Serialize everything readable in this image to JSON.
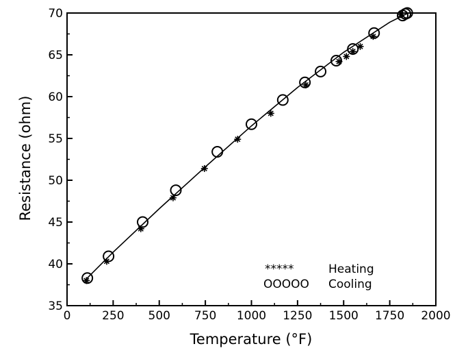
{
  "chart_data": {
    "type": "scatter",
    "xlabel": "Temperature  (°F)",
    "ylabel": "Resistance  (ohm)",
    "xlim": [
      0,
      2000
    ],
    "ylim": [
      35,
      70
    ],
    "x_ticks": [
      "0",
      "250",
      "500",
      "750",
      "1000",
      "1250",
      "1500",
      "1750",
      "2000"
    ],
    "y_ticks": [
      "35",
      "40",
      "45",
      "50",
      "55",
      "60",
      "65",
      "70"
    ],
    "grid": false,
    "legend_position": "bottom-right",
    "series": [
      {
        "name": "Heating",
        "marker_label": "*****",
        "marker": "asterisk",
        "x": [
          105,
          215,
          400,
          575,
          745,
          925,
          1105,
          1295,
          1475,
          1515,
          1550,
          1590,
          1660,
          1810
        ],
        "y": [
          38.0,
          40.3,
          44.2,
          47.9,
          51.4,
          54.9,
          58.0,
          61.4,
          64.2,
          64.8,
          65.4,
          66.0,
          67.2,
          69.8
        ]
      },
      {
        "name": "Cooling",
        "marker_label": "OOOOO",
        "marker": "circle",
        "x": [
          110,
          225,
          410,
          590,
          815,
          1000,
          1170,
          1290,
          1375,
          1460,
          1550,
          1665,
          1820,
          1835,
          1845
        ],
        "y": [
          38.3,
          40.9,
          45.0,
          48.8,
          53.4,
          56.7,
          59.6,
          61.7,
          63.0,
          64.3,
          65.7,
          67.6,
          69.7,
          69.9,
          70.0
        ]
      },
      {
        "name": "",
        "marker": "line",
        "x": [
          100,
          250,
          500,
          750,
          1000,
          1250,
          1500,
          1750,
          1850
        ],
        "y": [
          38.1,
          41.4,
          46.6,
          51.6,
          56.5,
          61.1,
          65.3,
          68.9,
          70.0
        ]
      }
    ]
  }
}
